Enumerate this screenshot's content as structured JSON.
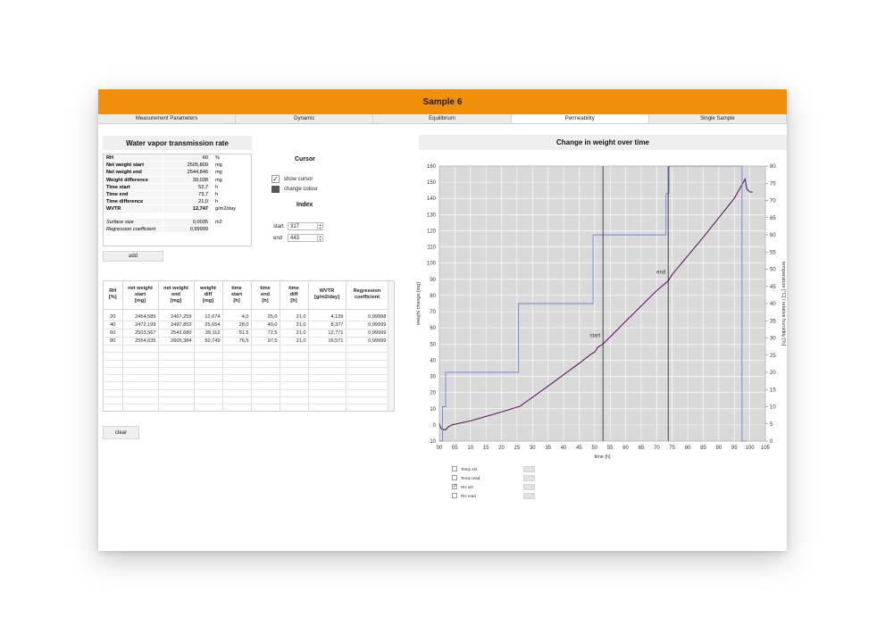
{
  "window": {
    "title": "Sample 6"
  },
  "tabs": [
    {
      "label": "Measurement Parameters",
      "active": false
    },
    {
      "label": "Dynamic",
      "active": false
    },
    {
      "label": "Equilibrium",
      "active": false
    },
    {
      "label": "Permeability",
      "active": true
    },
    {
      "label": "Single Sample",
      "active": false
    }
  ],
  "wvtr_panel": {
    "title": "Water vapor transmission rate",
    "rows": [
      {
        "label": "RH",
        "value": "60",
        "unit": "%"
      },
      {
        "label": "Net weight start",
        "value": "2505,809",
        "unit": "mg"
      },
      {
        "label": "Net weight end",
        "value": "2544,846",
        "unit": "mg"
      },
      {
        "label": "Weight difference",
        "value": "39,038",
        "unit": "mg"
      },
      {
        "label": "Time start",
        "value": "52,7",
        "unit": "h"
      },
      {
        "label": "Time end",
        "value": "73,7",
        "unit": "h"
      },
      {
        "label": "Time difference",
        "value": "21,0",
        "unit": "h"
      },
      {
        "label": "WVTR",
        "value": "12,747",
        "unit": "g/m2/day"
      }
    ],
    "extra_rows": [
      {
        "label": "Surface size",
        "value": "0,0035",
        "unit": "m2"
      },
      {
        "label": "Regression coefficient",
        "value": "0,99999",
        "unit": ""
      }
    ],
    "add_label": "add",
    "clear_label": "clear"
  },
  "cursor": {
    "title": "Cursor",
    "show_cursor_label": "show cursor",
    "show_cursor_checked": true,
    "change_colour_label": "change colour",
    "index_title": "Index",
    "start_label": "start",
    "start_value": "317",
    "end_label": "end",
    "end_value": "443"
  },
  "results_table": {
    "headers": [
      [
        "RH",
        "[%]"
      ],
      [
        "net weight",
        "start",
        "[mg]"
      ],
      [
        "net weight",
        "end",
        "[mg]"
      ],
      [
        "weight",
        "diff",
        "[mg]"
      ],
      [
        "time",
        "start",
        "[h]"
      ],
      [
        "time",
        "end",
        "[h]"
      ],
      [
        "time",
        "diff",
        "[h]"
      ],
      [
        "WVTR",
        "[g/m2/day]"
      ],
      [
        "Regression",
        "coefficient"
      ]
    ],
    "rows": [
      [
        "20",
        "2454,585",
        "2467,259",
        "12,674",
        "4,0",
        "25,0",
        "21,0",
        "4,139",
        "0,99998"
      ],
      [
        "40",
        "2472,199",
        "2497,853",
        "25,654",
        "28,0",
        "49,0",
        "21,0",
        "8,377",
        "0,99999"
      ],
      [
        "60",
        "2503,567",
        "2542,680",
        "39,112",
        "51,5",
        "72,5",
        "21,0",
        "12,771",
        "0,99999"
      ],
      [
        "80",
        "2554,635",
        "2605,384",
        "50,749",
        "76,5",
        "97,5",
        "21,0",
        "16,571",
        "0,99999"
      ]
    ],
    "empty_rows": 10
  },
  "chart": {
    "title": "Change in weight over time",
    "legend": [
      {
        "label": "Temp set",
        "checked": false
      },
      {
        "label": "Temp read",
        "checked": false
      },
      {
        "label": "RH set",
        "checked": true
      },
      {
        "label": "RH read",
        "checked": false
      }
    ]
  },
  "chart_data": {
    "type": "line",
    "title": "Change in weight over time",
    "xlabel": "time [h]",
    "ylabel": "weight change [mg]",
    "y2label": "temperature [°C] / relative humidity [%]",
    "xlim": [
      0,
      105
    ],
    "ylim": [
      -10,
      160
    ],
    "y2lim": [
      0,
      80
    ],
    "x_ticks": [
      "00",
      "05",
      "10",
      "15",
      "20",
      "25",
      "30",
      "35",
      "40",
      "45",
      "50",
      "55",
      "60",
      "65",
      "70",
      "75",
      "80",
      "85",
      "90",
      "95",
      "100",
      "105"
    ],
    "y_ticks": [
      -10,
      0,
      10,
      20,
      30,
      40,
      50,
      60,
      70,
      80,
      90,
      100,
      110,
      120,
      130,
      140,
      150,
      160
    ],
    "y2_ticks": [
      0,
      5,
      10,
      15,
      20,
      25,
      30,
      35,
      40,
      45,
      50,
      55,
      60,
      65,
      70,
      75,
      80
    ],
    "grid": true,
    "cursors": [
      {
        "label": "start",
        "x": 52.7
      },
      {
        "label": "end",
        "x": 73.7
      }
    ],
    "series": [
      {
        "axis": "left",
        "color": "#5c1a5e",
        "x": [
          0,
          0.5,
          1,
          2,
          3,
          4,
          10,
          20,
          25,
          26,
          27,
          35,
          45,
          49,
          50,
          51,
          52.7,
          60,
          70,
          73.7,
          75,
          85,
          95,
          98.5,
          99,
          100,
          101
        ],
        "y": [
          1,
          -2,
          -3,
          -3,
          -1,
          0,
          2.5,
          8,
          11,
          11.5,
          13,
          24,
          38,
          44,
          45,
          48,
          50,
          64,
          83,
          89,
          93,
          116,
          140,
          152,
          146,
          144,
          144
        ]
      },
      {
        "name": "RH set",
        "axis": "right",
        "color": "#6f86d8",
        "x": [
          0,
          1,
          1,
          2,
          2,
          25.5,
          25.5,
          49.5,
          49.5,
          73,
          73,
          74,
          74,
          97.5,
          97.5,
          99
        ],
        "y": [
          0,
          0,
          10,
          10,
          20,
          20,
          40,
          40,
          60,
          60,
          72,
          72,
          80,
          80,
          0,
          0
        ]
      }
    ]
  }
}
